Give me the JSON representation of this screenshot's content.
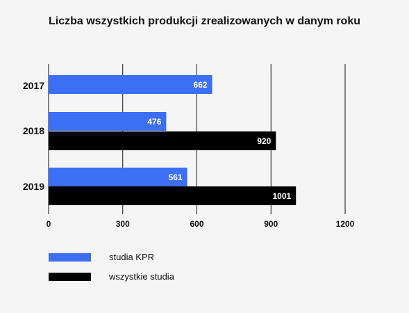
{
  "chart_data": {
    "type": "bar",
    "orientation": "horizontal",
    "title": "Liczba wszystkich produkcji zrealizowanych w danym roku",
    "categories": [
      "2017",
      "2018",
      "2019"
    ],
    "series": [
      {
        "name": "studia KPR",
        "color": "#3d6ff5",
        "values": [
          662,
          476,
          561
        ]
      },
      {
        "name": "wszystkie studia",
        "color": "#000000",
        "values": [
          null,
          920,
          1001
        ]
      }
    ],
    "xticks": [
      "0",
      "300",
      "600",
      "900",
      "1200"
    ],
    "xlim": [
      0,
      1200
    ],
    "grid": "vertical",
    "legend_position": "bottom-left"
  }
}
